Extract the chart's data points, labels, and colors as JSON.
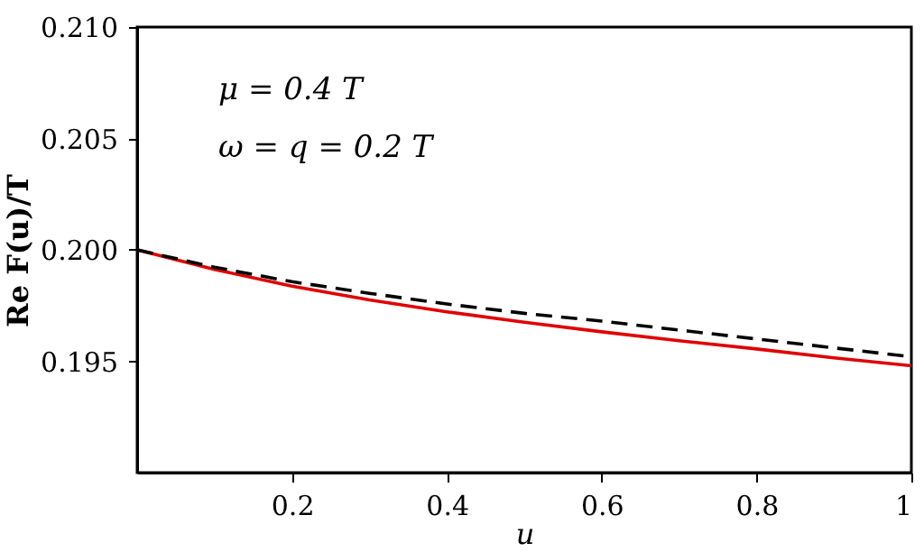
{
  "chart_data": {
    "type": "line",
    "xlabel": "u",
    "ylabel": "Re F(u)/T",
    "annotations": [
      "μ = 0.4 T",
      "ω = q = 0.2 T"
    ],
    "x": [
      0,
      0.1,
      0.2,
      0.3,
      0.4,
      0.5,
      0.6,
      0.7,
      0.8,
      0.9,
      1
    ],
    "series": [
      {
        "color": "#e00000",
        "line_style": "solid",
        "values": [
          0.2,
          0.19912,
          0.19837,
          0.19775,
          0.19722,
          0.19675,
          0.19632,
          0.19592,
          0.19555,
          0.19515,
          0.1948
        ]
      },
      {
        "color": "#000000",
        "line_style": "dashed",
        "values": [
          0.2,
          0.19922,
          0.19857,
          0.19805,
          0.19757,
          0.19715,
          0.1968,
          0.1964,
          0.196,
          0.1956,
          0.1952
        ]
      }
    ],
    "xlim": [
      0,
      1
    ],
    "xticks": [
      0.2,
      0.4,
      0.6,
      0.8,
      1
    ],
    "ylim": [
      0.19,
      0.21
    ],
    "yticks": [
      0.195,
      {
        "value": 0.2,
        "label": "0.200"
      },
      0.205,
      {
        "value": 0.21,
        "label": "0.210"
      }
    ],
    "grid": false,
    "marker": "none"
  }
}
